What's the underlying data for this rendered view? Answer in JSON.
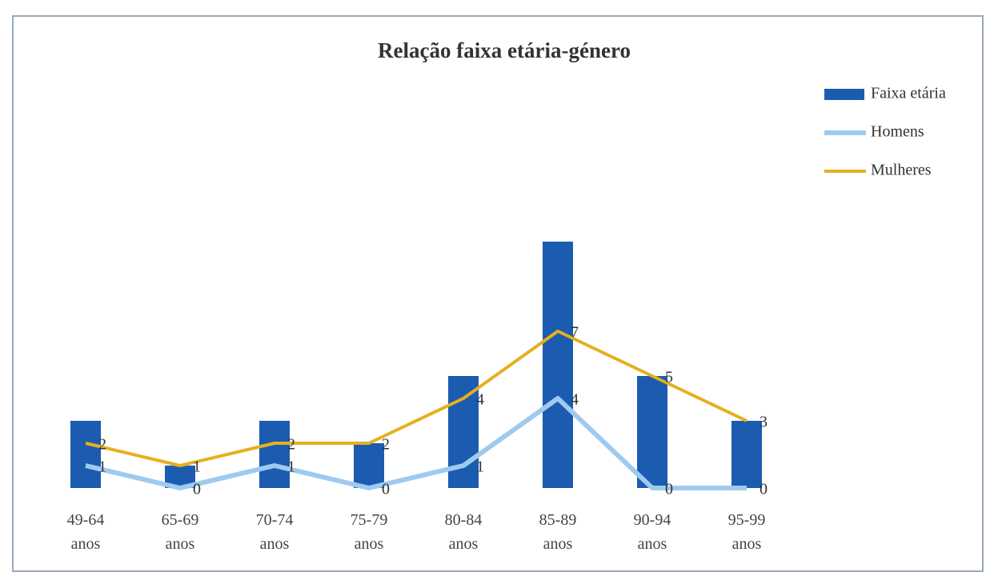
{
  "chart_data": {
    "type": "combo",
    "title": "Relação faixa etária-género",
    "categories": [
      "49-64 anos",
      "65-69 anos",
      "70-74 anos",
      "75-79 anos",
      "80-84 anos",
      "85-89 anos",
      "90-94 anos",
      "95-99 anos"
    ],
    "series": [
      {
        "name": "Faixa etária",
        "type": "bar",
        "color": "#1b5cb0",
        "values": [
          3,
          1,
          3,
          2,
          5,
          11,
          5,
          3
        ]
      },
      {
        "name": "Homens",
        "type": "line",
        "color": "#9fcaf0",
        "values": [
          1,
          0,
          1,
          0,
          1,
          4,
          0,
          0
        ],
        "data_labels": true
      },
      {
        "name": "Mulheres",
        "type": "line",
        "color": "#e5b01f",
        "values": [
          2,
          1,
          2,
          2,
          4,
          7,
          5,
          3
        ],
        "data_labels": true
      }
    ],
    "ylim": [
      0,
      12
    ],
    "legend": "right"
  }
}
